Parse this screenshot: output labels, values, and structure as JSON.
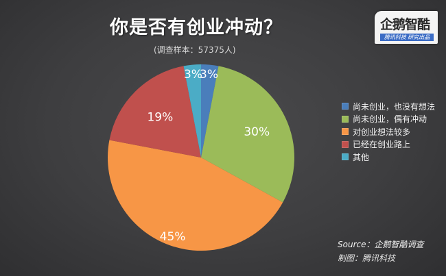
{
  "header": {
    "title": "你是否有创业冲动？",
    "subtitle": "(调查样本：57375人)"
  },
  "logo": {
    "name": "企鹅智酷",
    "tagline": "腾讯科技 研究出品"
  },
  "footer": {
    "source": "Source：企鹅智酷调查",
    "credit": "制图：腾讯科技"
  },
  "legend": [
    {
      "label": "尚未创业，也没有想法",
      "color": "#4a7ebb"
    },
    {
      "label": "尚未创业，偶有冲动",
      "color": "#9bbb59"
    },
    {
      "label": "对创业想法较多",
      "color": "#f79646"
    },
    {
      "label": "已经在创业路上",
      "color": "#c0504d"
    },
    {
      "label": "其他",
      "color": "#4bacc6"
    }
  ],
  "chart_data": {
    "type": "pie",
    "title": "你是否有创业冲动？",
    "subtitle": "(调查样本：57375人)",
    "categories": [
      "尚未创业，也没有想法",
      "尚未创业，偶有冲动",
      "对创业想法较多",
      "已经在创业路上",
      "其他"
    ],
    "values": [
      3,
      30,
      45,
      19,
      3
    ],
    "labels": [
      "3%",
      "30%",
      "45%",
      "19%",
      "3%"
    ],
    "colors": [
      "#4a7ebb",
      "#9bbb59",
      "#f79646",
      "#c0504d",
      "#4bacc6"
    ],
    "start_angle": "12 o'clock, clockwise",
    "legend_position": "right",
    "source": "Source：企鹅智酷调查"
  }
}
